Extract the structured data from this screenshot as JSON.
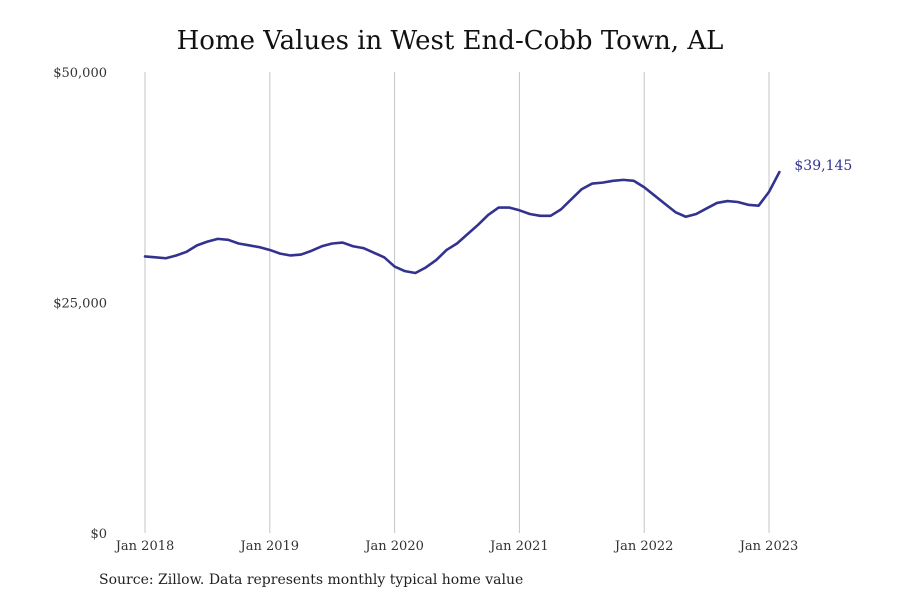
{
  "chart_data": {
    "type": "line",
    "title": "Home Values in West End-Cobb Town, AL",
    "source": "Source: Zillow. Data represents monthly typical home value",
    "xlabel": "",
    "ylabel": "",
    "ylim": [
      0,
      50000
    ],
    "y_ticks": [
      {
        "value": 0,
        "label": "$0"
      },
      {
        "value": 25000,
        "label": "$25,000"
      },
      {
        "value": 50000,
        "label": "$50,000"
      }
    ],
    "x_ticks": [
      {
        "x": "2018-01",
        "label": "Jan 2018"
      },
      {
        "x": "2019-01",
        "label": "Jan 2019"
      },
      {
        "x": "2020-01",
        "label": "Jan 2020"
      },
      {
        "x": "2021-01",
        "label": "Jan 2021"
      },
      {
        "x": "2022-01",
        "label": "Jan 2022"
      },
      {
        "x": "2023-01",
        "label": "Jan 2023"
      }
    ],
    "grid": {
      "vertical": true,
      "horizontal": false
    },
    "legend": "none",
    "colors": {
      "line": "#33338f",
      "grid": "#c4c4c4"
    },
    "end_label": "$39,145",
    "series": [
      {
        "x": [
          "2018-01",
          "2018-02",
          "2018-03",
          "2018-04",
          "2018-05",
          "2018-06",
          "2018-07",
          "2018-08",
          "2018-09",
          "2018-10",
          "2018-11",
          "2018-12",
          "2019-01",
          "2019-02",
          "2019-03",
          "2019-04",
          "2019-05",
          "2019-06",
          "2019-07",
          "2019-08",
          "2019-09",
          "2019-10",
          "2019-11",
          "2019-12",
          "2020-01",
          "2020-02",
          "2020-03",
          "2020-04",
          "2020-05",
          "2020-06",
          "2020-07",
          "2020-08",
          "2020-09",
          "2020-10",
          "2020-11",
          "2020-12",
          "2021-01",
          "2021-02",
          "2021-03",
          "2021-04",
          "2021-05",
          "2021-06",
          "2021-07",
          "2021-08",
          "2021-09",
          "2021-10",
          "2021-11",
          "2021-12",
          "2022-01",
          "2022-02",
          "2022-03",
          "2022-04",
          "2022-05",
          "2022-06",
          "2022-07",
          "2022-08",
          "2022-09",
          "2022-10",
          "2022-11",
          "2022-12",
          "2023-01",
          "2023-02"
        ],
        "values": [
          30000,
          29900,
          29800,
          30100,
          30500,
          31200,
          31600,
          31900,
          31800,
          31400,
          31200,
          31000,
          30700,
          30300,
          30100,
          30200,
          30600,
          31100,
          31400,
          31500,
          31100,
          30900,
          30400,
          29900,
          28900,
          28400,
          28200,
          28800,
          29600,
          30700,
          31400,
          32400,
          33400,
          34500,
          35300,
          35300,
          35000,
          34600,
          34400,
          34400,
          35100,
          36200,
          37300,
          37900,
          38000,
          38200,
          38300,
          38200,
          37500,
          36600,
          35700,
          34800,
          34300,
          34600,
          35200,
          35800,
          36000,
          35900,
          35600,
          35500,
          37000,
          39145
        ]
      }
    ]
  }
}
